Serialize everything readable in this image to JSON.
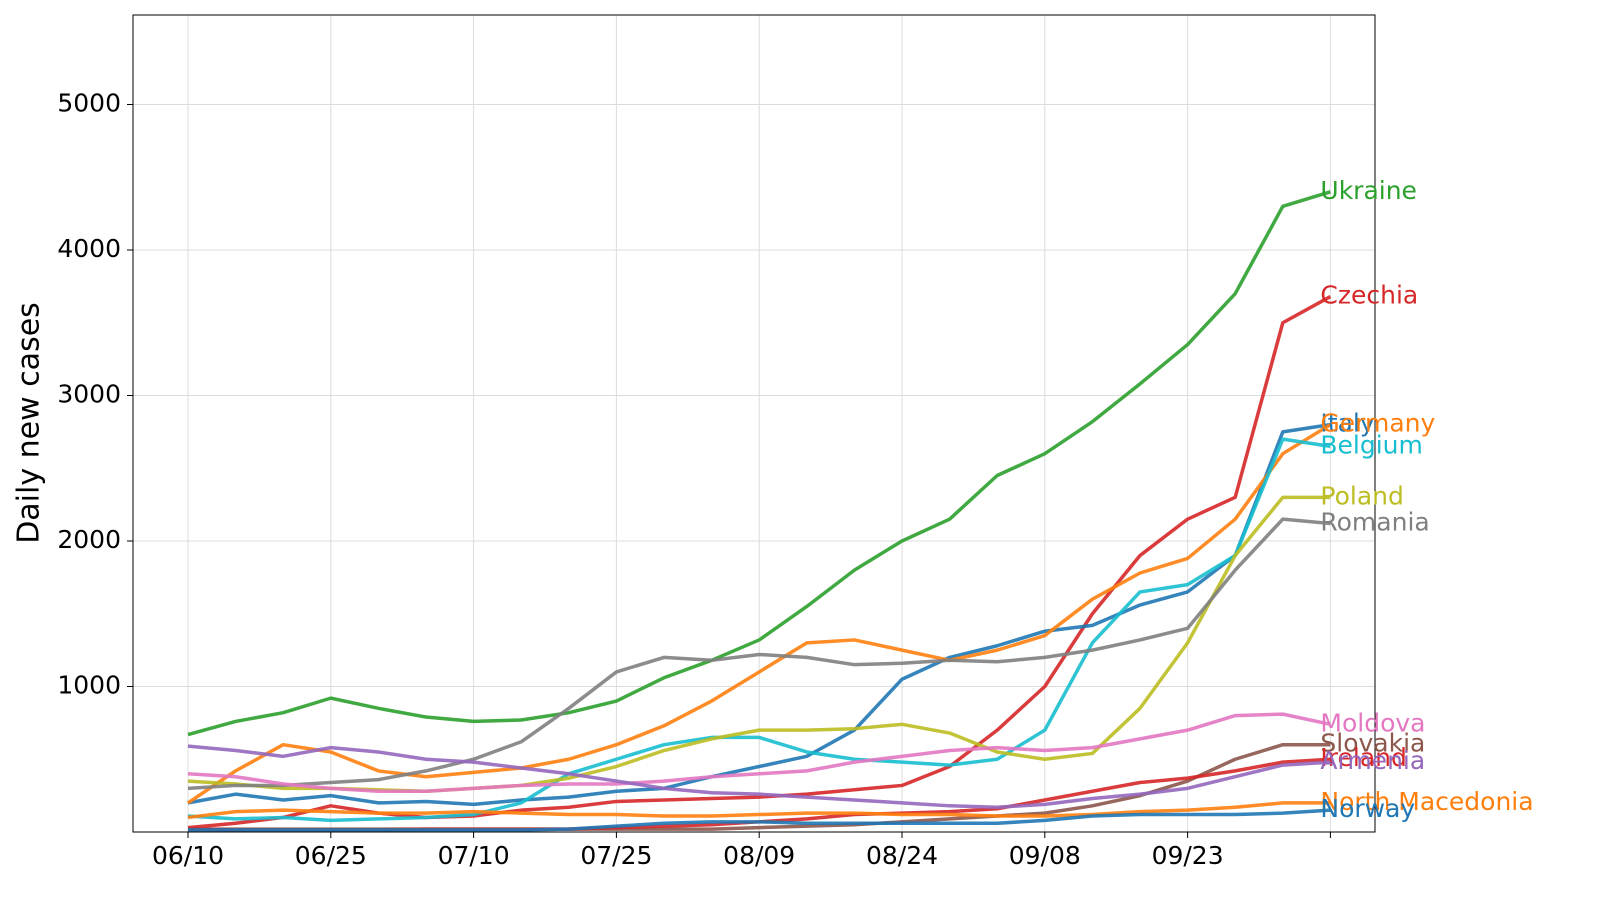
{
  "chart_data": {
    "type": "line",
    "y_label": "Daily new cases",
    "categories": [
      "06/10",
      null,
      null,
      "06/25",
      null,
      null,
      "07/10",
      null,
      null,
      "07/25",
      null,
      null,
      "08/09",
      null,
      null,
      "08/24",
      null,
      null,
      "09/08",
      null,
      null,
      "09/23",
      null,
      null,
      null
    ],
    "ylim": [
      0,
      5615
    ],
    "yticks": [
      1000,
      2000,
      3000,
      4000,
      5000
    ],
    "grid": true,
    "series": [
      {
        "name": "Ukraine",
        "color": "#2ca02c",
        "values": [
          670,
          760,
          820,
          920,
          850,
          790,
          760,
          770,
          820,
          900,
          1060,
          1180,
          1320,
          1550,
          1800,
          2000,
          2150,
          2450,
          2600,
          2820,
          3080,
          3350,
          3700,
          4300,
          4400
        ]
      },
      {
        "name": "Czechia",
        "color": "#d62728",
        "values": [
          30,
          60,
          100,
          180,
          130,
          100,
          110,
          150,
          170,
          210,
          220,
          230,
          240,
          260,
          290,
          320,
          450,
          700,
          1000,
          1500,
          1900,
          2150,
          2300,
          3500,
          3680
        ]
      },
      {
        "name": "Italy",
        "color": "#1f77b4",
        "values": [
          200,
          260,
          220,
          250,
          200,
          210,
          190,
          220,
          240,
          280,
          300,
          380,
          450,
          520,
          700,
          1050,
          1200,
          1280,
          1380,
          1420,
          1560,
          1650,
          1900,
          2750,
          2800
        ]
      },
      {
        "name": "Germany",
        "color": "#ff7f0e",
        "values": [
          200,
          420,
          600,
          550,
          420,
          380,
          410,
          440,
          500,
          600,
          730,
          900,
          1100,
          1300,
          1320,
          1250,
          1180,
          1250,
          1350,
          1600,
          1780,
          1880,
          2150,
          2600,
          2800
        ]
      },
      {
        "name": "Belgium",
        "color": "#17becf",
        "values": [
          110,
          90,
          100,
          80,
          90,
          100,
          120,
          200,
          400,
          500,
          600,
          650,
          650,
          550,
          500,
          480,
          460,
          500,
          700,
          1300,
          1650,
          1700,
          1900,
          2700,
          2650
        ]
      },
      {
        "name": "Poland",
        "color": "#bcbd22",
        "values": [
          350,
          330,
          300,
          300,
          290,
          280,
          300,
          320,
          370,
          450,
          560,
          640,
          700,
          700,
          710,
          740,
          680,
          550,
          500,
          540,
          850,
          1300,
          1900,
          2300,
          2300
        ]
      },
      {
        "name": "Romania",
        "color": "#7f7f7f",
        "values": [
          300,
          320,
          320,
          340,
          360,
          420,
          500,
          620,
          850,
          1100,
          1200,
          1180,
          1220,
          1200,
          1150,
          1160,
          1180,
          1170,
          1200,
          1250,
          1320,
          1400,
          1800,
          2150,
          2120
        ]
      },
      {
        "name": "Moldova",
        "color": "#e377c2",
        "values": [
          400,
          380,
          330,
          300,
          280,
          280,
          300,
          320,
          330,
          330,
          350,
          380,
          400,
          420,
          480,
          520,
          560,
          580,
          560,
          580,
          640,
          700,
          800,
          810,
          740
        ]
      },
      {
        "name": "Slovakia",
        "color": "#8c564b",
        "values": [
          20,
          20,
          20,
          20,
          20,
          20,
          20,
          20,
          20,
          20,
          20,
          20,
          30,
          40,
          50,
          70,
          90,
          110,
          130,
          180,
          250,
          350,
          500,
          600,
          600
        ]
      },
      {
        "name": "Ireland",
        "color": "#d62728",
        "values": [
          20,
          15,
          15,
          15,
          15,
          20,
          20,
          20,
          20,
          30,
          40,
          50,
          70,
          90,
          120,
          130,
          140,
          160,
          220,
          280,
          340,
          370,
          420,
          480,
          500
        ]
      },
      {
        "name": "Armenia",
        "color": "#9467bd",
        "values": [
          590,
          560,
          520,
          580,
          550,
          500,
          480,
          440,
          400,
          350,
          300,
          270,
          260,
          240,
          220,
          200,
          180,
          170,
          190,
          230,
          260,
          300,
          380,
          460,
          480
        ]
      },
      {
        "name": "North Macedonia",
        "color": "#ff7f0e",
        "values": [
          100,
          140,
          150,
          140,
          130,
          130,
          140,
          130,
          120,
          120,
          110,
          110,
          120,
          130,
          130,
          120,
          120,
          110,
          110,
          120,
          140,
          150,
          170,
          200,
          200
        ]
      },
      {
        "name": "Norway",
        "color": "#1f77b4",
        "values": [
          15,
          15,
          15,
          15,
          15,
          15,
          15,
          15,
          20,
          40,
          60,
          70,
          70,
          60,
          60,
          60,
          60,
          60,
          80,
          110,
          120,
          120,
          120,
          130,
          150
        ]
      }
    ]
  }
}
